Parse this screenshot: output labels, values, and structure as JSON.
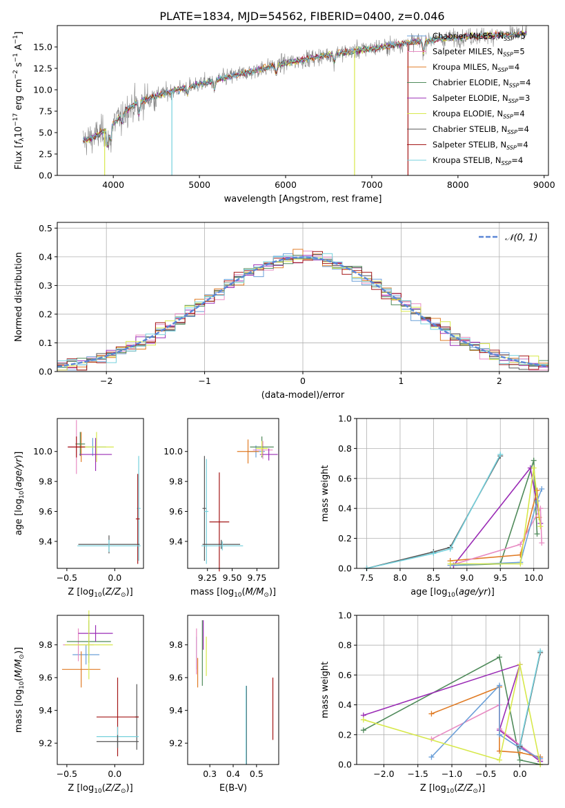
{
  "figure_title": "PLATE=1834, MJD=54562, FIBERID=0400, z=0.046",
  "colors": {
    "observed": "#808080",
    "gauss": "#5b86d6",
    "grid": "#b0b0b0",
    "series": [
      "#6a9fd8",
      "#e88cc3",
      "#e07b24",
      "#4f8a5a",
      "#9a2bb5",
      "#d7e84a",
      "#555555",
      "#a31515",
      "#74d0dc"
    ]
  },
  "legend": {
    "entries": [
      {
        "prefix": "Chabrier MILES, N",
        "sub": "SSP",
        "suffix": "=5"
      },
      {
        "prefix": "Salpeter MILES, N",
        "sub": "SSP",
        "suffix": "=5"
      },
      {
        "prefix": "Kroupa MILES, N",
        "sub": "SSP",
        "suffix": "=4"
      },
      {
        "prefix": "Chabrier ELODIE, N",
        "sub": "SSP",
        "suffix": "=4"
      },
      {
        "prefix": "Salpeter ELODIE, N",
        "sub": "SSP",
        "suffix": "=3"
      },
      {
        "prefix": "Kroupa ELODIE, N",
        "sub": "SSP",
        "suffix": "=4"
      },
      {
        "prefix": "Chabrier STELIB, N",
        "sub": "SSP",
        "suffix": "=4"
      },
      {
        "prefix": "Salpeter STELIB, N",
        "sub": "SSP",
        "suffix": "=4"
      },
      {
        "prefix": "Kroupa STELIB, N",
        "sub": "SSP",
        "suffix": "=4"
      }
    ]
  },
  "chart_data": [
    {
      "id": "spectrum",
      "type": "line",
      "title": "PLATE=1834, MJD=54562, FIBERID=0400, z=0.046",
      "xlabel": "wavelength [Angstrom, rest frame]",
      "ylabel": "Flux [fλ 10⁻¹⁷ erg cm⁻² s⁻¹ A⁻¹]",
      "xlim": [
        3350,
        9050
      ],
      "ylim": [
        0,
        17.5
      ],
      "xticks": [
        4000,
        5000,
        6000,
        7000,
        8000,
        9000
      ],
      "yticks": [
        0.0,
        2.5,
        5.0,
        7.5,
        10.0,
        12.5,
        15.0
      ],
      "ytick_labels": [
        "0.0",
        "2.5",
        "5.0",
        "7.5",
        "10.0",
        "12.5",
        "15.0"
      ],
      "grid": false,
      "legend_position": "top-right",
      "continuum": {
        "x": [
          3650,
          3750,
          3850,
          3950,
          4050,
          4150,
          4300,
          4500,
          4700,
          4900,
          5100,
          5300,
          5500,
          5700,
          5900,
          6100,
          6300,
          6500,
          6700,
          6900,
          7100,
          7300,
          7500,
          7700,
          7900,
          8100,
          8300,
          8500,
          8700,
          8800
        ],
        "y": [
          4.0,
          4.4,
          4.9,
          5.5,
          6.6,
          7.6,
          8.6,
          9.3,
          9.9,
          10.4,
          10.9,
          11.4,
          11.9,
          12.4,
          12.9,
          13.3,
          13.7,
          14.1,
          14.4,
          14.7,
          15.0,
          15.3,
          15.6,
          15.8,
          16.0,
          16.2,
          16.3,
          16.4,
          16.5,
          16.5
        ]
      }
    },
    {
      "id": "residual-hist",
      "type": "line",
      "xlabel": "(data-model)/error",
      "ylabel": "Normed distribution",
      "xlim": [
        -2.5,
        2.5
      ],
      "ylim": [
        0,
        0.52
      ],
      "xticks": [
        -2,
        -1,
        0,
        1,
        2
      ],
      "xtick_labels": [
        "−2",
        "−1",
        "0",
        "1",
        "2"
      ],
      "yticks": [
        0.0,
        0.1,
        0.2,
        0.3,
        0.4,
        0.5
      ],
      "ytick_labels": [
        "0.0",
        "0.1",
        "0.2",
        "0.3",
        "0.4",
        "0.5"
      ],
      "grid": true,
      "legend_position": "top-right",
      "legend_label": "𝒩(0, 1)",
      "bin_width": 0.1
    },
    {
      "id": "age-vs-Z",
      "type": "scatter",
      "xlabel": "Z [log10(Z/Z⊙)]",
      "ylabel": "age [log10(age/yr)]",
      "xlim": [
        -0.6,
        0.3
      ],
      "ylim": [
        9.22,
        10.22
      ],
      "xticks": [
        -0.5,
        0.0
      ],
      "xtick_labels": [
        "−0.5",
        "0.0"
      ],
      "yticks": [
        9.4,
        9.6,
        9.8,
        10.0
      ],
      "ytick_labels": [
        "9.4",
        "9.6",
        "9.8",
        "10.0"
      ],
      "grid": false,
      "points": [
        {
          "x": -0.23,
          "y": 10.03,
          "xe": 0.14,
          "ye": 0.06,
          "c": 0
        },
        {
          "x": -0.4,
          "y": 10.03,
          "xe": 0.09,
          "ye": 0.18,
          "c": 1
        },
        {
          "x": -0.35,
          "y": 10.03,
          "xe": 0.05,
          "ye": 0.1,
          "c": 2
        },
        {
          "x": -0.19,
          "y": 10.03,
          "xe": 0.18,
          "ye": 0.1,
          "c": 5
        },
        {
          "x": -0.36,
          "y": 10.05,
          "xe": 0.05,
          "ye": 0.08,
          "c": 3
        },
        {
          "x": -0.2,
          "y": 9.98,
          "xe": 0.17,
          "ye": 0.11,
          "c": 4
        },
        {
          "x": -0.4,
          "y": 10.03,
          "xe": 0.09,
          "ye": 0.07,
          "c": 7
        },
        {
          "x": 0.25,
          "y": 9.62,
          "xe": 0.02,
          "ye": 0.35,
          "c": 8
        },
        {
          "x": 0.24,
          "y": 9.55,
          "xe": 0.02,
          "ye": 0.3,
          "c": 7
        },
        {
          "x": -0.06,
          "y": 9.38,
          "xe": 0.32,
          "ye": 0.06,
          "c": 6
        },
        {
          "x": -0.06,
          "y": 9.37,
          "xe": 0.33,
          "ye": 0.04,
          "c": 8
        }
      ]
    },
    {
      "id": "age-vs-mass",
      "type": "scatter",
      "xlabel": "mass [log10(M/M⊙)]",
      "ylabel": "",
      "xlim": [
        9.05,
        9.97
      ],
      "ylim": [
        9.22,
        10.22
      ],
      "xticks": [
        9.25,
        9.5,
        9.75
      ],
      "xtick_labels": [
        "9.25",
        "9.50",
        "9.75"
      ],
      "yticks": [
        9.4,
        9.6,
        9.8,
        10.0
      ],
      "ytick_labels": [
        "9.4",
        "9.6",
        "9.8",
        "10.0"
      ],
      "grid": false,
      "points": [
        {
          "x": 9.74,
          "y": 10.0,
          "xe": 0.09,
          "ye": 0.04,
          "c": 0
        },
        {
          "x": 9.81,
          "y": 10.01,
          "xe": 0.1,
          "ye": 0.06,
          "c": 1
        },
        {
          "x": 9.66,
          "y": 10.0,
          "xe": 0.11,
          "ye": 0.08,
          "c": 2
        },
        {
          "x": 9.8,
          "y": 10.03,
          "xe": 0.12,
          "ye": 0.07,
          "c": 3
        },
        {
          "x": 9.87,
          "y": 9.98,
          "xe": 0.09,
          "ye": 0.04,
          "c": 4
        },
        {
          "x": 9.8,
          "y": 10.02,
          "xe": 0.06,
          "ye": 0.05,
          "c": 5
        },
        {
          "x": 9.22,
          "y": 9.62,
          "xe": 0.02,
          "ye": 0.35,
          "c": 6
        },
        {
          "x": 9.37,
          "y": 9.53,
          "xe": 0.1,
          "ye": 0.33,
          "c": 7
        },
        {
          "x": 9.24,
          "y": 9.6,
          "xe": 0.02,
          "ye": 0.35,
          "c": 8
        },
        {
          "x": 9.39,
          "y": 9.38,
          "xe": 0.19,
          "ye": 0.03,
          "c": 6
        },
        {
          "x": 9.4,
          "y": 9.37,
          "xe": 0.21,
          "ye": 0.03,
          "c": 8
        }
      ]
    },
    {
      "id": "weight-vs-age",
      "type": "line",
      "xlabel": "age [log10(age/yr)]",
      "ylabel": "mass weight",
      "xlim": [
        7.35,
        10.22
      ],
      "ylim": [
        0,
        1.0
      ],
      "xticks": [
        7.5,
        8.0,
        8.5,
        9.0,
        9.5,
        10.0
      ],
      "xtick_labels": [
        "7.5",
        "8.0",
        "8.5",
        "9.0",
        "9.5",
        "10.0"
      ],
      "yticks": [
        0.0,
        0.2,
        0.4,
        0.6,
        0.8,
        1.0
      ],
      "ytick_labels": [
        "0.0",
        "0.2",
        "0.4",
        "0.6",
        "0.8",
        "1.0"
      ],
      "grid": true,
      "series": [
        {
          "c": 6,
          "points": [
            [
              7.5,
              0.0
            ],
            [
              8.5,
              0.11
            ],
            [
              8.75,
              0.14
            ],
            [
              9.5,
              0.75
            ]
          ]
        },
        {
          "c": 8,
          "points": [
            [
              7.5,
              0.0
            ],
            [
              8.5,
              0.1
            ],
            [
              8.75,
              0.13
            ],
            [
              9.5,
              0.76
            ]
          ]
        },
        {
          "c": 3,
          "points": [
            [
              8.8,
              0.02
            ],
            [
              9.5,
              0.03
            ],
            [
              10.0,
              0.72
            ],
            [
              10.05,
              0.23
            ]
          ]
        },
        {
          "c": 4,
          "points": [
            [
              8.8,
              0.02
            ],
            [
              9.95,
              0.67
            ],
            [
              10.1,
              0.3
            ]
          ]
        },
        {
          "c": 2,
          "points": [
            [
              8.75,
              0.05
            ],
            [
              9.8,
              0.09
            ],
            [
              10.05,
              0.52
            ],
            [
              10.08,
              0.34
            ]
          ]
        },
        {
          "c": 1,
          "points": [
            [
              8.75,
              0.02
            ],
            [
              9.8,
              0.16
            ],
            [
              10.1,
              0.4
            ],
            [
              10.12,
              0.17
            ]
          ]
        },
        {
          "c": 0,
          "points": [
            [
              8.75,
              0.02
            ],
            [
              9.8,
              0.04
            ],
            [
              10.05,
              0.45
            ],
            [
              10.12,
              0.53
            ]
          ]
        },
        {
          "c": 5,
          "points": [
            [
              8.75,
              0.03
            ],
            [
              9.8,
              0.03
            ],
            [
              10.0,
              0.67
            ],
            [
              10.1,
              0.28
            ]
          ]
        }
      ]
    },
    {
      "id": "mass-vs-Z",
      "type": "scatter",
      "xlabel": "Z [log10(Z/Z⊙)]",
      "ylabel": "mass [log10(M/M⊙)]",
      "xlim": [
        -0.6,
        0.3
      ],
      "ylim": [
        9.07,
        9.98
      ],
      "xticks": [
        -0.5,
        0.0
      ],
      "xtick_labels": [
        "−0.5",
        "0.0"
      ],
      "yticks": [
        9.2,
        9.4,
        9.6,
        9.8
      ],
      "ytick_labels": [
        "9.2",
        "9.4",
        "9.6",
        "9.8"
      ],
      "grid": false,
      "points": [
        {
          "x": -0.3,
          "y": 9.74,
          "xe": 0.14,
          "ye": 0.06,
          "c": 0
        },
        {
          "x": -0.38,
          "y": 9.8,
          "xe": 0.16,
          "ye": 0.1,
          "c": 1
        },
        {
          "x": -0.35,
          "y": 9.65,
          "xe": 0.2,
          "ye": 0.11,
          "c": 2
        },
        {
          "x": -0.27,
          "y": 9.82,
          "xe": 0.23,
          "ye": 0.13,
          "c": 3
        },
        {
          "x": -0.2,
          "y": 9.87,
          "xe": 0.18,
          "ye": 0.05,
          "c": 4
        },
        {
          "x": -0.27,
          "y": 9.8,
          "xe": 0.25,
          "ye": 0.21,
          "c": 5
        },
        {
          "x": 0.23,
          "y": 9.36,
          "xe": 0.02,
          "ye": 0.2,
          "c": 6
        },
        {
          "x": 0.03,
          "y": 9.36,
          "xe": 0.22,
          "ye": 0.24,
          "c": 7
        },
        {
          "x": 0.03,
          "y": 9.24,
          "xe": 0.22,
          "ye": 0.06,
          "c": 8
        },
        {
          "x": 0.03,
          "y": 9.21,
          "xe": 0.22,
          "ye": 0.04,
          "c": 6
        }
      ]
    },
    {
      "id": "mass-vs-EBV",
      "type": "scatter",
      "xlabel": "E(B-V)",
      "ylabel": "",
      "xlim": [
        0.205,
        0.595
      ],
      "ylim": [
        9.07,
        9.98
      ],
      "xticks": [
        0.3,
        0.4,
        0.5
      ],
      "xtick_labels": [
        "0.3",
        "0.4",
        "0.5"
      ],
      "yticks": [
        9.2,
        9.4,
        9.6,
        9.8
      ],
      "ytick_labels": [
        "9.2",
        "9.4",
        "9.6",
        "9.8"
      ],
      "grid": false,
      "points": [
        {
          "x": 0.243,
          "y": 9.75,
          "xe": 0,
          "ye": 0.1,
          "c": 0
        },
        {
          "x": 0.243,
          "y": 9.76,
          "xe": 0,
          "ye": 0.14,
          "c": 1
        },
        {
          "x": 0.248,
          "y": 9.63,
          "xe": 0,
          "ye": 0.09,
          "c": 2
        },
        {
          "x": 0.268,
          "y": 9.75,
          "xe": 0,
          "ye": 0.2,
          "c": 3
        },
        {
          "x": 0.272,
          "y": 9.86,
          "xe": 0,
          "ye": 0.09,
          "c": 4
        },
        {
          "x": 0.285,
          "y": 9.73,
          "xe": 0,
          "ye": 0.12,
          "c": 5
        },
        {
          "x": 0.457,
          "y": 9.31,
          "xe": 0,
          "ye": 0.24,
          "c": 6
        },
        {
          "x": 0.57,
          "y": 9.41,
          "xe": 0,
          "ye": 0.19,
          "c": 7
        },
        {
          "x": 0.455,
          "y": 9.31,
          "xe": 0,
          "ye": 0.24,
          "c": 8
        }
      ]
    },
    {
      "id": "weight-vs-Z",
      "type": "line",
      "xlabel": "Z [log10(Z/Z⊙)]",
      "ylabel": "mass weight",
      "xlim": [
        -2.4,
        0.42
      ],
      "ylim": [
        0,
        1.0
      ],
      "xticks": [
        -2.0,
        -1.5,
        -1.0,
        -0.5,
        0.0
      ],
      "xtick_labels": [
        "−2.0",
        "−1.5",
        "−1.0",
        "−0.5",
        "0.0"
      ],
      "yticks": [
        0.0,
        0.2,
        0.4,
        0.6,
        0.8,
        1.0
      ],
      "ytick_labels": [
        "0.0",
        "0.2",
        "0.4",
        "0.6",
        "0.8",
        "1.0"
      ],
      "grid": true,
      "series": [
        {
          "c": 3,
          "points": [
            [
              -2.3,
              0.23
            ],
            [
              -0.3,
              0.72
            ],
            [
              0.0,
              0.03
            ],
            [
              0.3,
              0.0
            ]
          ]
        },
        {
          "c": 4,
          "points": [
            [
              -2.3,
              0.33
            ],
            [
              0.0,
              0.67
            ],
            [
              -0.3,
              0.23
            ],
            [
              0.3,
              0.02
            ]
          ]
        },
        {
          "c": 2,
          "points": [
            [
              -1.3,
              0.34
            ],
            [
              -0.3,
              0.52
            ],
            [
              -0.3,
              0.09
            ],
            [
              0.0,
              0.08
            ],
            [
              0.3,
              0.05
            ]
          ]
        },
        {
          "c": 1,
          "points": [
            [
              -1.3,
              0.17
            ],
            [
              -0.3,
              0.4
            ],
            [
              -0.3,
              0.24
            ],
            [
              0.0,
              0.13
            ],
            [
              0.3,
              0.03
            ]
          ]
        },
        {
          "c": 0,
          "points": [
            [
              -1.3,
              0.05
            ],
            [
              -0.3,
              0.53
            ],
            [
              -0.3,
              0.2
            ],
            [
              0.0,
              0.11
            ],
            [
              0.3,
              0.04
            ]
          ]
        },
        {
          "c": 5,
          "points": [
            [
              -2.3,
              0.3
            ],
            [
              -0.3,
              0.03
            ],
            [
              0.0,
              0.67
            ],
            [
              0.3,
              0.0
            ]
          ]
        },
        {
          "c": 6,
          "points": [
            [
              0.0,
              0.12
            ],
            [
              0.3,
              0.75
            ]
          ]
        },
        {
          "c": 8,
          "points": [
            [
              0.0,
              0.13
            ],
            [
              0.3,
              0.76
            ]
          ]
        }
      ]
    }
  ]
}
